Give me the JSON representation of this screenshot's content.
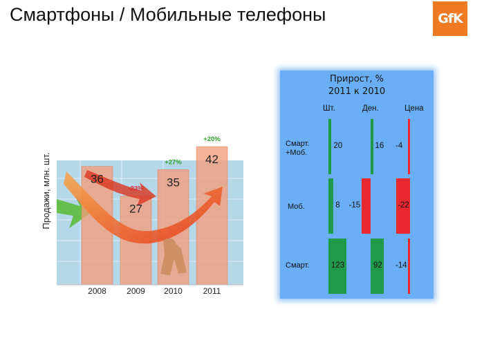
{
  "page_title": "Смартфоны / Мобильные телефоны",
  "logo_text": "GfK",
  "colors": {
    "bar": "#f39c7a",
    "bar_stroke": "#e27a55",
    "panel_bg": "#6aaef5",
    "positive": "#1f9a4a",
    "negative": "#e8282f",
    "growth_pos": "#2aa22a",
    "growth_neg": "#d9262c",
    "logo": "#f07a22"
  },
  "chart_data": [
    {
      "type": "bar",
      "ylabel": "Продажи, млн. шт.",
      "categories": [
        "2008",
        "2009",
        "2010",
        "2011"
      ],
      "values": [
        36,
        27,
        35,
        42
      ],
      "value_labels": [
        "36",
        "27",
        "35",
        "42"
      ],
      "growth_labels": [
        "",
        "-23%",
        "+27%",
        "+20%"
      ],
      "growth_signs": [
        "",
        "neg",
        "pos",
        "pos"
      ]
    },
    {
      "type": "bar",
      "title": "Прирост, %",
      "subtitle": "2011 к 2010",
      "columns": [
        "Шт.",
        "Ден.",
        "Цена"
      ],
      "rows": [
        {
          "label_line1": "Смарт.",
          "label_line2": "+Моб.",
          "values": [
            20,
            16,
            -4
          ],
          "labels": [
            "20",
            "16",
            "-4"
          ]
        },
        {
          "label_line1": "Моб.",
          "label_line2": "",
          "values": [
            8,
            -15,
            -22
          ],
          "labels": [
            "8",
            "-15",
            "-22"
          ]
        },
        {
          "label_line1": "Смарт.",
          "label_line2": "",
          "values": [
            123,
            92,
            -14
          ],
          "labels": [
            "123",
            "92",
            "-14"
          ]
        }
      ]
    }
  ]
}
